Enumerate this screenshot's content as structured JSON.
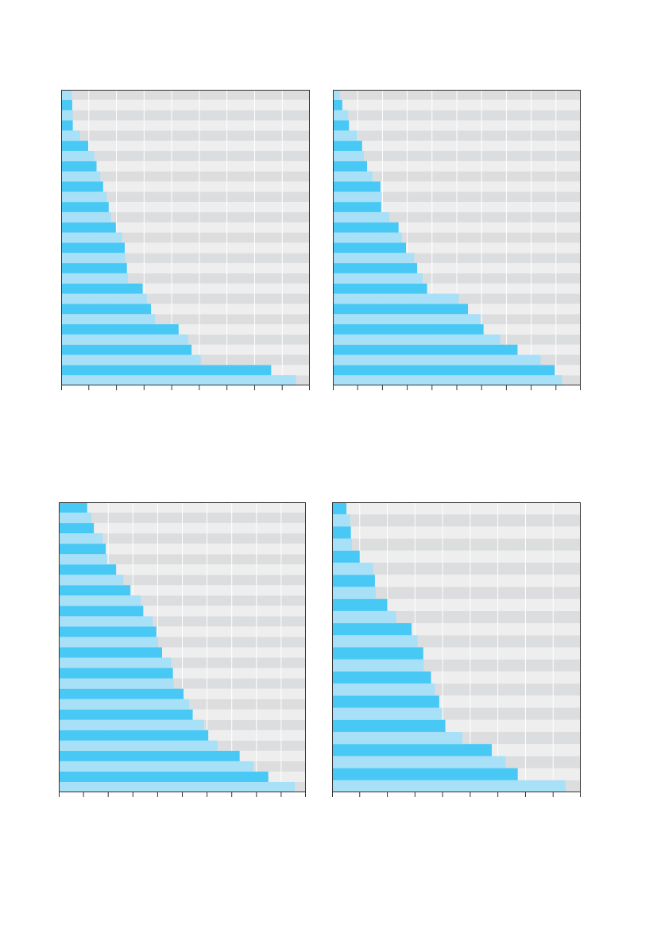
{
  "colors": {
    "bar_dark": "#48c8f5",
    "bar_light": "#a8e0f8",
    "band_dark": "#dcdddf",
    "band_light": "#eeeeee",
    "axis": "#333333",
    "gridline": "#ffffff"
  },
  "chart_data": [
    {
      "type": "bar",
      "orientation": "horizontal",
      "xlim": [
        0,
        9
      ],
      "grid": true,
      "legend": "none",
      "values": [
        0.38,
        0.4,
        0.42,
        0.42,
        0.68,
        0.98,
        1.2,
        1.28,
        1.42,
        1.52,
        1.65,
        1.72,
        1.8,
        1.98,
        2.2,
        2.3,
        2.32,
        2.38,
        2.42,
        2.95,
        3.1,
        3.25,
        3.4,
        4.25,
        4.6,
        4.72,
        5.05,
        7.6,
        8.5
      ]
    },
    {
      "type": "bar",
      "orientation": "horizontal",
      "xlim": [
        0,
        10
      ],
      "grid": true,
      "legend": "none",
      "values": [
        0.28,
        0.38,
        0.62,
        0.65,
        1.0,
        1.18,
        1.25,
        1.38,
        1.6,
        1.92,
        1.95,
        1.95,
        2.28,
        2.65,
        2.78,
        2.95,
        3.28,
        3.4,
        3.62,
        3.8,
        5.08,
        5.45,
        5.95,
        6.08,
        6.75,
        7.45,
        8.38,
        8.95,
        9.25
      ]
    },
    {
      "type": "bar",
      "orientation": "horizontal",
      "xlim": [
        0,
        10
      ],
      "grid": true,
      "legend": "none",
      "values": [
        1.15,
        1.32,
        1.42,
        1.78,
        1.9,
        1.95,
        2.32,
        2.62,
        2.9,
        3.32,
        3.42,
        3.8,
        3.95,
        4.02,
        4.18,
        4.55,
        4.62,
        4.65,
        5.05,
        5.28,
        5.42,
        5.88,
        6.05,
        6.42,
        7.32,
        7.88,
        8.48,
        9.55
      ]
    },
    {
      "type": "bar",
      "orientation": "horizontal",
      "xlim": [
        0,
        9
      ],
      "grid": true,
      "legend": "none",
      "values": [
        0.52,
        0.65,
        0.68,
        0.72,
        1.0,
        1.48,
        1.55,
        1.58,
        2.0,
        2.32,
        2.88,
        3.1,
        3.3,
        3.32,
        3.58,
        3.72,
        3.88,
        3.98,
        4.1,
        4.72,
        5.78,
        6.28,
        6.72,
        8.45
      ]
    }
  ]
}
